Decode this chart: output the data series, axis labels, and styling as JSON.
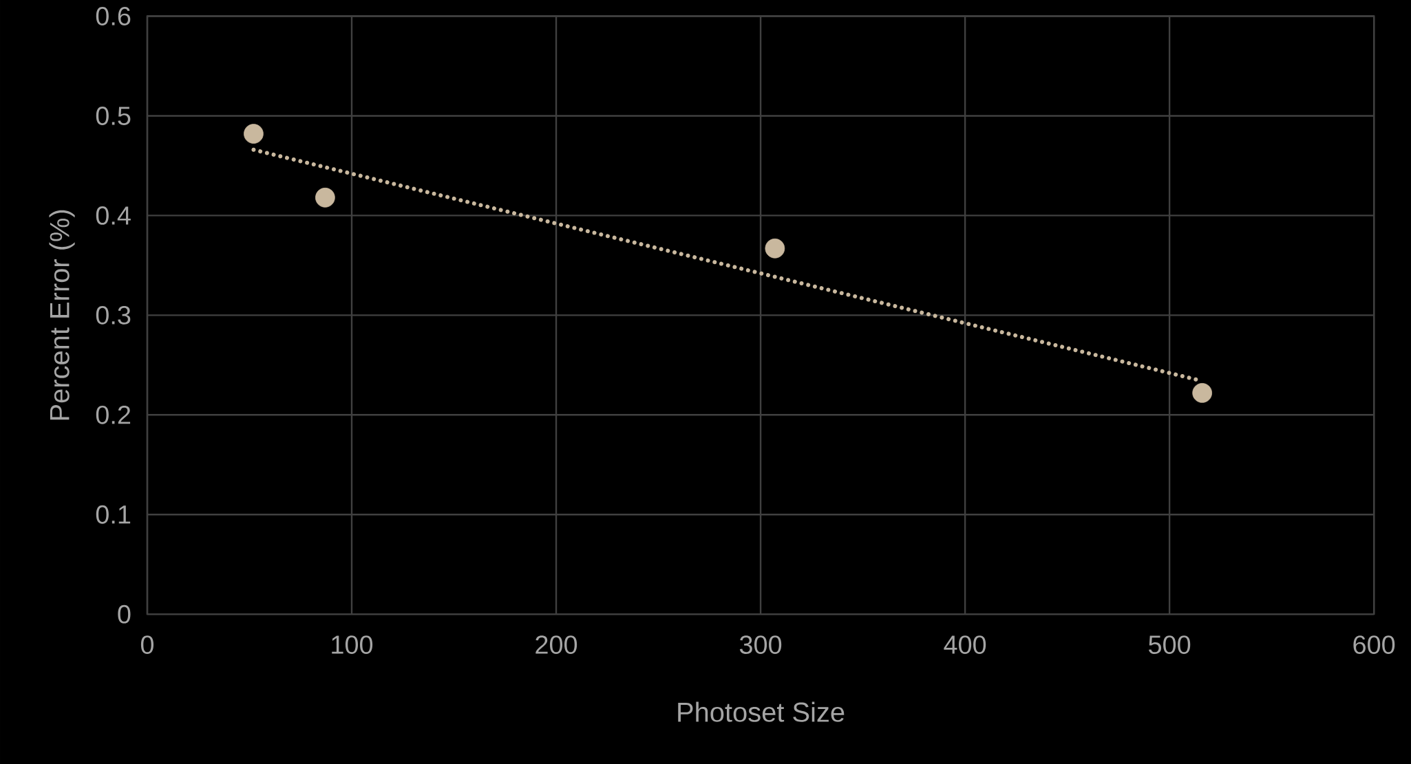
{
  "chart_data": {
    "type": "scatter",
    "xlabel": "Photoset Size",
    "ylabel": "Percent Error (%)",
    "x": [
      52,
      87,
      307,
      516
    ],
    "series": [
      {
        "color": "#c9b89e",
        "values": [
          0.482,
          0.418,
          0.367,
          0.222
        ],
        "marker": "circle"
      },
      {
        "type": "line",
        "color": "#c9b89e",
        "x": [
          52,
          516
        ],
        "values": [
          0.466,
          0.234
        ],
        "line_style": "dotted",
        "marker": "none"
      }
    ],
    "xlim": [
      0,
      600
    ],
    "xticks": [
      0,
      100,
      200,
      300,
      400,
      500,
      600
    ],
    "ylim": [
      0,
      0.6
    ],
    "yticks": [
      0,
      0.1,
      0.2,
      0.3,
      0.4,
      0.5,
      0.6
    ],
    "grid": true
  }
}
